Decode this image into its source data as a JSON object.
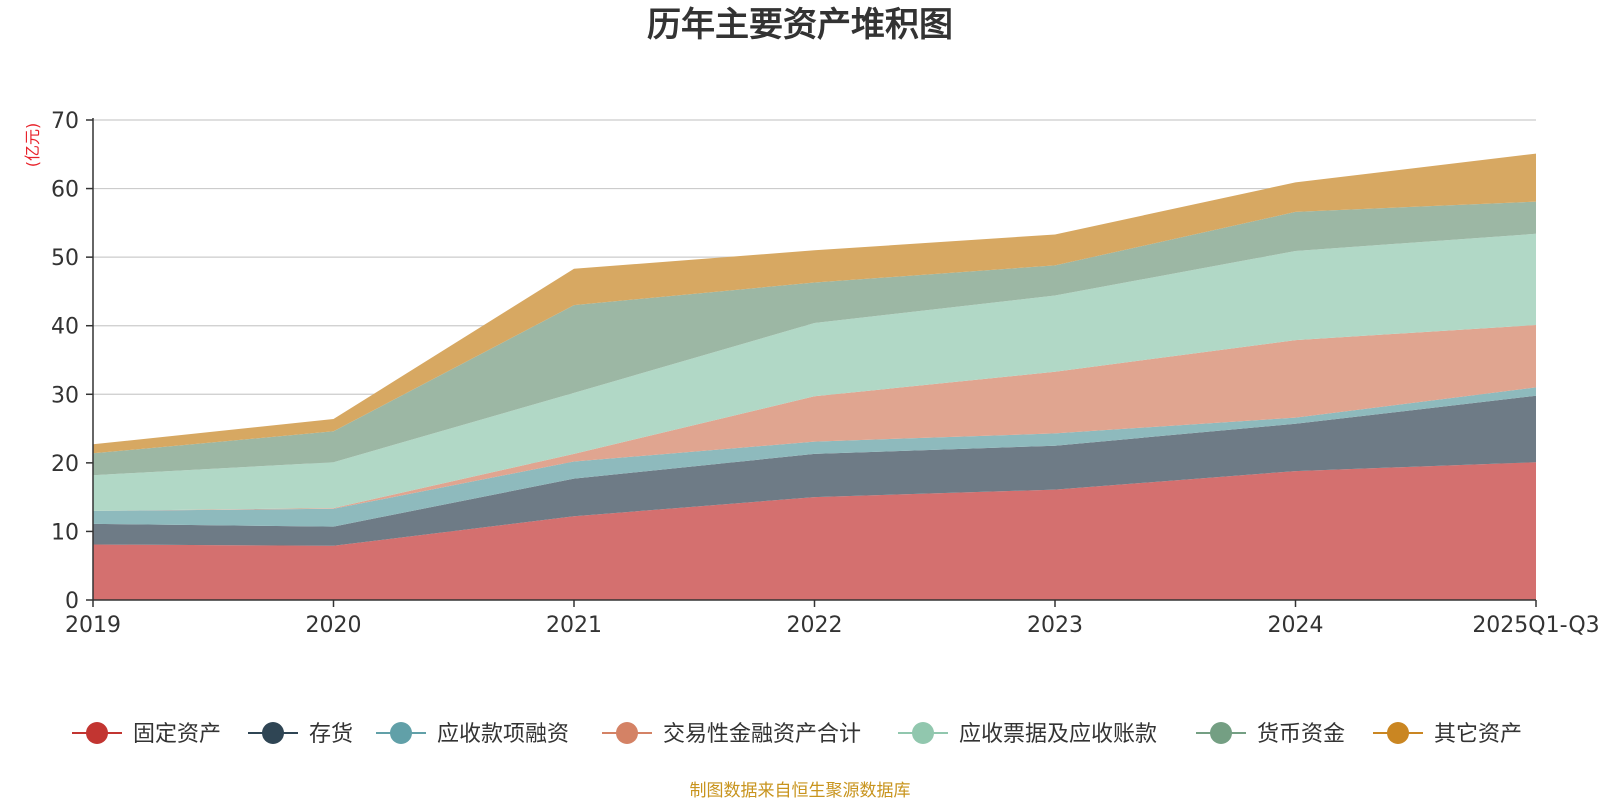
{
  "chart_data": {
    "type": "area",
    "stacked": true,
    "title": "历年主要资产堆积图",
    "ylabel": "(亿元)",
    "xlabel": "",
    "categories": [
      "2019",
      "2020",
      "2021",
      "2022",
      "2023",
      "2024",
      "2025Q1-Q3"
    ],
    "ylim": [
      0,
      70
    ],
    "yticks": [
      0,
      10,
      20,
      30,
      40,
      50,
      60,
      70
    ],
    "grid": true,
    "legend_position": "bottom",
    "series": [
      {
        "name": "固定资产",
        "color": "#c23531",
        "fill": "#d4706f",
        "values": [
          8.1,
          7.9,
          12.2,
          15.0,
          16.1,
          18.8,
          20.1
        ]
      },
      {
        "name": "存货",
        "color": "#2f4554",
        "fill": "#6e7b86",
        "values": [
          3.0,
          2.8,
          5.5,
          6.3,
          6.4,
          6.9,
          9.7
        ]
      },
      {
        "name": "应收款项融资",
        "color": "#61a0a8",
        "fill": "#8ebabd",
        "values": [
          1.9,
          2.6,
          2.5,
          1.8,
          1.8,
          0.9,
          1.2
        ]
      },
      {
        "name": "交易性金融资产合计",
        "color": "#d48265",
        "fill": "#e0a590",
        "values": [
          0.0,
          0.1,
          1.1,
          6.6,
          9.0,
          11.3,
          9.1
        ]
      },
      {
        "name": "应收票据及应收账款",
        "color": "#91c7ae",
        "fill": "#b1d8c6",
        "values": [
          5.2,
          6.7,
          8.9,
          10.7,
          11.1,
          13.0,
          13.3
        ]
      },
      {
        "name": "货币资金",
        "color": "#749f83",
        "fill": "#9cb7a4",
        "values": [
          3.2,
          4.5,
          12.8,
          5.9,
          4.4,
          5.7,
          4.7
        ]
      },
      {
        "name": "其它资产",
        "color": "#ca8622",
        "fill": "#d7a862",
        "values": [
          1.3,
          1.8,
          5.3,
          4.7,
          4.5,
          4.3,
          7.0
        ]
      }
    ],
    "source_note": "制图数据来自恒生聚源数据库"
  }
}
